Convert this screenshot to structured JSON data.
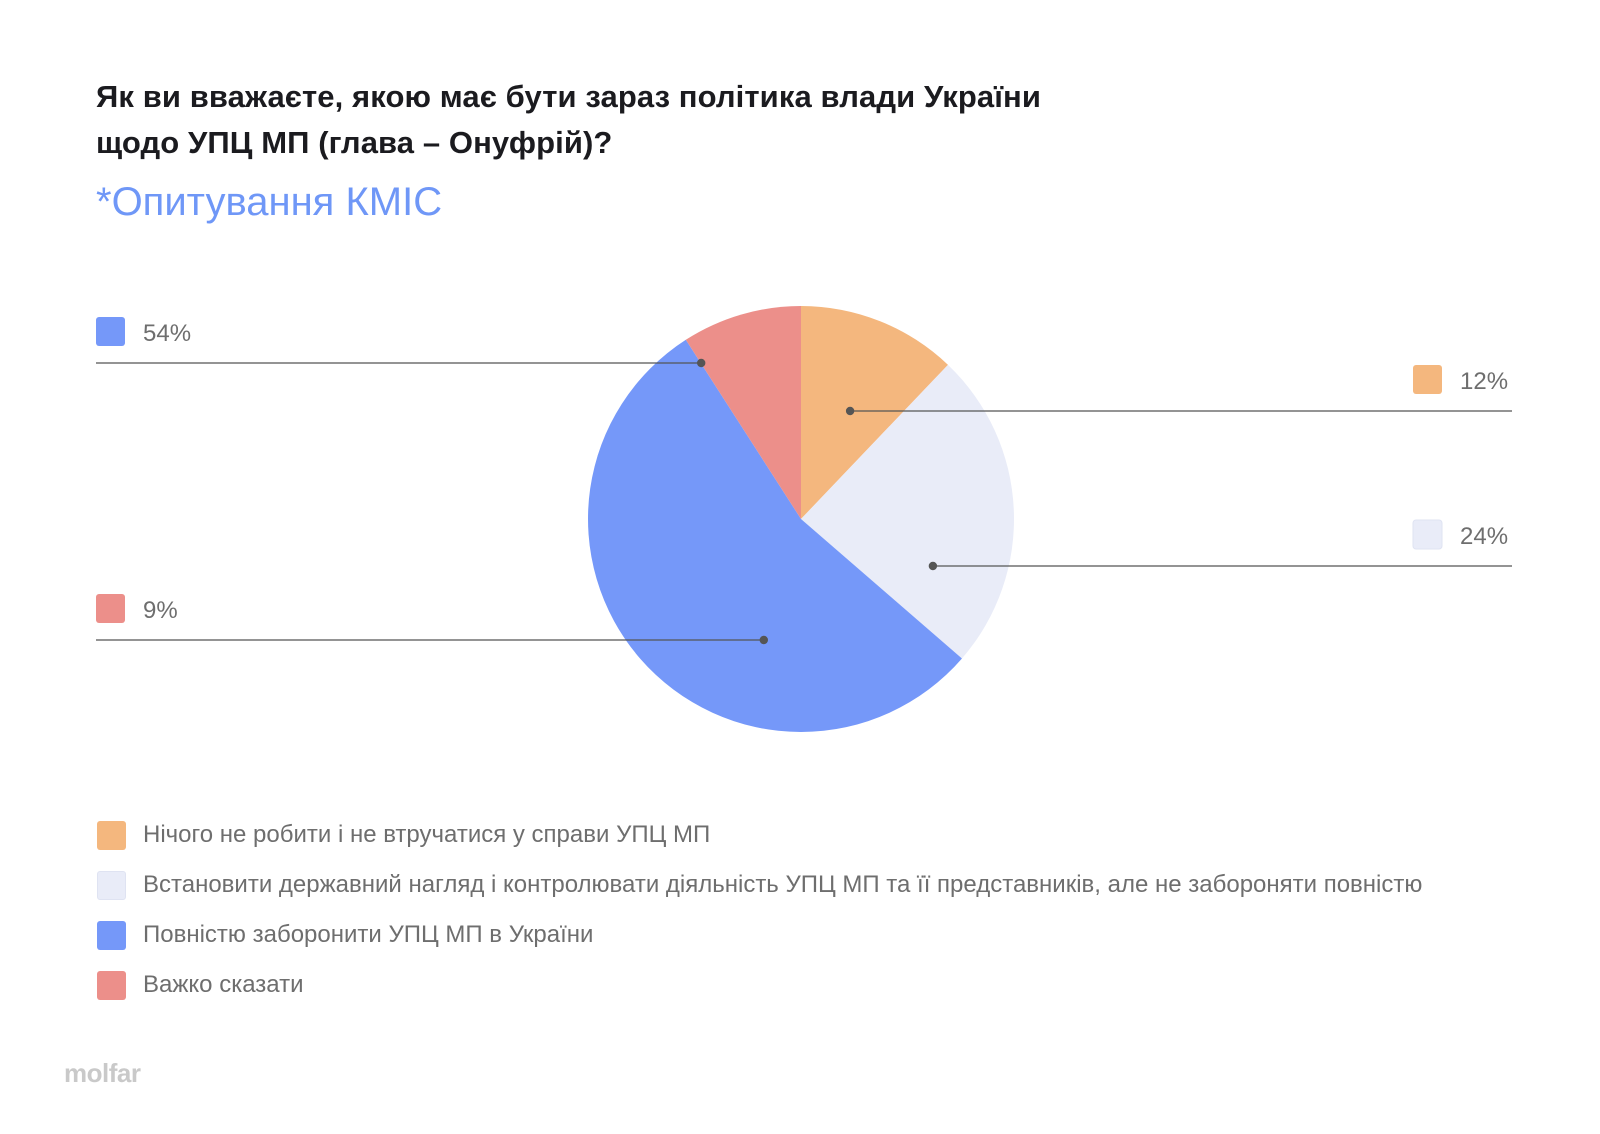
{
  "title_lines": [
    "Як ви вважаєте, якою має бути зараз політика влади України",
    "щодо УПЦ МП (глава – Онуфрій)?"
  ],
  "subtitle": "*Опитування КМІС",
  "logo": "molfar",
  "colors": {
    "nothing": "#f4b77e",
    "supervise": "#e9ecf8",
    "ban": "#7598f9",
    "hard": "#ec8f8a",
    "leader_line": "#555555",
    "label_text": "#6e6e6e"
  },
  "chart_data": {
    "type": "pie",
    "title": "Як ви вважаєте, якою має бути зараз політика влади України щодо УПЦ МП (глава – Онуфрій)?",
    "subtitle": "*Опитування КМІС",
    "unit": "%",
    "legend_position": "bottom",
    "slices": [
      {
        "key": "nothing",
        "label": "Нічого не робити і не втручатися у справи УПЦ МП",
        "value": 12,
        "data_label": "12%",
        "color": "#f4b77e",
        "label_side": "right"
      },
      {
        "key": "supervise",
        "label": "Встановити державний нагляд і контролювати діяльність УПЦ МП та її представників, але не забороняти повністю",
        "value": 24,
        "data_label": "24%",
        "color": "#e9ecf8",
        "label_side": "right"
      },
      {
        "key": "ban",
        "label": "Повністю заборонити УПЦ МП в України",
        "value": 54,
        "data_label": "54%",
        "color": "#7598f9",
        "label_side": "left"
      },
      {
        "key": "hard",
        "label": "Важко сказати",
        "value": 9,
        "data_label": "9%",
        "color": "#ec8f8a",
        "label_side": "left"
      }
    ]
  }
}
